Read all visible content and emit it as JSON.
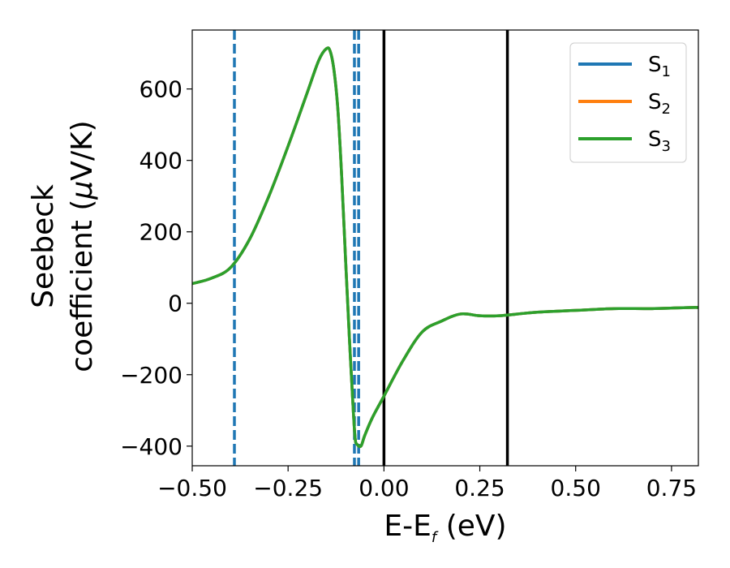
{
  "chart_data": {
    "type": "line",
    "xlabel": {
      "main": "E-E",
      "sub": "f",
      "unit": " (eV)"
    },
    "ylabel": {
      "line1": "Seebeck",
      "line2_pre": "coefficient  (",
      "mu": "μ",
      "line2_post": "V/K)"
    },
    "xlim": [
      -0.5,
      0.82
    ],
    "ylim": [
      -455,
      765
    ],
    "xticks": [
      -0.5,
      -0.25,
      0.0,
      0.25,
      0.5,
      0.75
    ],
    "xtick_labels": [
      "−0.50",
      "−0.25",
      "0.00",
      "0.25",
      "0.50",
      "0.75"
    ],
    "yticks": [
      -400,
      -200,
      0,
      200,
      400,
      600
    ],
    "ytick_labels": [
      "−400",
      "−200",
      "0",
      "200",
      "400",
      "600"
    ],
    "grid": false,
    "legend": {
      "placement": "top-right",
      "entries": [
        {
          "base": "S",
          "sub": "1",
          "color": "#1f77b4"
        },
        {
          "base": "S",
          "sub": "2",
          "color": "#ff7f0e"
        },
        {
          "base": "S",
          "sub": "3",
          "color": "#2ca02c"
        }
      ]
    },
    "vlines_dashed": {
      "color": "#1f77b4",
      "x": [
        -0.39,
        -0.077,
        -0.066
      ]
    },
    "vlines_solid": {
      "color": "#000000",
      "x": [
        0.0,
        0.322
      ]
    },
    "series": [
      {
        "name": "S1",
        "color": "#1f77b4",
        "x": [
          -0.5,
          -0.45,
          -0.4,
          -0.35,
          -0.3,
          -0.25,
          -0.2,
          -0.17,
          -0.15,
          -0.14,
          -0.13,
          -0.12,
          -0.11,
          -0.1,
          -0.09,
          -0.08,
          -0.075,
          -0.07,
          -0.06,
          -0.05,
          -0.03,
          0.0,
          0.05,
          0.1,
          0.15,
          0.2,
          0.25,
          0.3,
          0.35,
          0.4,
          0.5,
          0.6,
          0.7,
          0.8,
          0.82
        ],
        "y": [
          55,
          70,
          100,
          180,
          300,
          440,
          590,
          680,
          713,
          705,
          650,
          540,
          350,
          120,
          -100,
          -300,
          -380,
          -395,
          -400,
          -370,
          -320,
          -260,
          -160,
          -80,
          -50,
          -30,
          -35,
          -35,
          -30,
          -25,
          -20,
          -15,
          -15,
          -12,
          -12
        ]
      },
      {
        "name": "S2",
        "color": "#ff7f0e",
        "x": [
          -0.5,
          -0.45,
          -0.4,
          -0.35,
          -0.3,
          -0.25,
          -0.2,
          -0.17,
          -0.15,
          -0.14,
          -0.13,
          -0.12,
          -0.11,
          -0.1,
          -0.09,
          -0.08,
          -0.075,
          -0.07,
          -0.06,
          -0.05,
          -0.03,
          0.0,
          0.05,
          0.1,
          0.15,
          0.2,
          0.25,
          0.3,
          0.35,
          0.4,
          0.5,
          0.6,
          0.7,
          0.8,
          0.82
        ],
        "y": [
          55,
          70,
          100,
          180,
          300,
          440,
          590,
          680,
          713,
          705,
          650,
          540,
          350,
          120,
          -100,
          -300,
          -380,
          -395,
          -400,
          -370,
          -320,
          -260,
          -160,
          -80,
          -50,
          -30,
          -35,
          -35,
          -30,
          -25,
          -20,
          -15,
          -15,
          -12,
          -12
        ]
      },
      {
        "name": "S3",
        "color": "#2ca02c",
        "x": [
          -0.5,
          -0.45,
          -0.4,
          -0.35,
          -0.3,
          -0.25,
          -0.2,
          -0.17,
          -0.15,
          -0.14,
          -0.13,
          -0.12,
          -0.11,
          -0.1,
          -0.09,
          -0.08,
          -0.075,
          -0.07,
          -0.06,
          -0.05,
          -0.03,
          0.0,
          0.05,
          0.1,
          0.15,
          0.2,
          0.25,
          0.3,
          0.35,
          0.4,
          0.5,
          0.6,
          0.7,
          0.8,
          0.82
        ],
        "y": [
          55,
          70,
          100,
          180,
          300,
          440,
          590,
          680,
          713,
          705,
          650,
          540,
          350,
          120,
          -100,
          -300,
          -380,
          -395,
          -400,
          -370,
          -320,
          -260,
          -160,
          -80,
          -50,
          -30,
          -35,
          -35,
          -30,
          -25,
          -20,
          -15,
          -15,
          -12,
          -12
        ]
      }
    ]
  }
}
